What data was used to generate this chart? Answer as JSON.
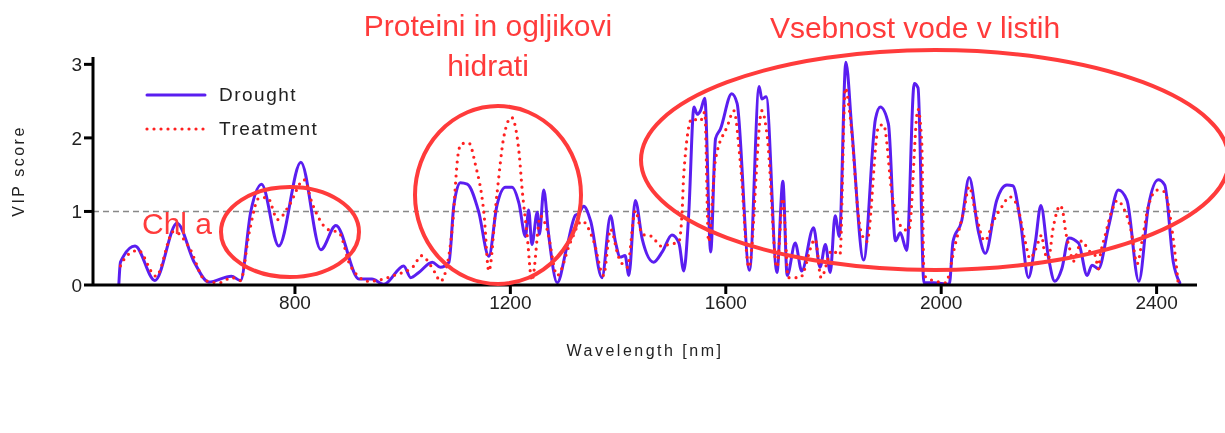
{
  "chart_data": {
    "type": "line",
    "xlabel": "Wavelength [nm]",
    "ylabel": "VIP score",
    "xlim": [
      425,
      2475
    ],
    "ylim": [
      0,
      3.1
    ],
    "xticks": [
      800,
      1200,
      1600,
      2000,
      2400
    ],
    "yticks": [
      0,
      1,
      2,
      3
    ],
    "legend": "top left",
    "annotations": [
      "Chl a",
      "Proteini in ogljikovi hidrati",
      "Vsebnost vode v listih"
    ],
    "ref_lines": [
      {
        "axis": "y",
        "value": 1,
        "color": "#888888",
        "line_style": "dashed"
      }
    ],
    "series": [
      {
        "name": "Drought",
        "color": "#5a1ef0",
        "line_style": "solid",
        "x": [
          473,
          476,
          503,
          540,
          581,
          613,
          640,
          682,
          699,
          718,
          738,
          770,
          811,
          848,
          876,
          919,
          943,
          965,
          1002,
          1015,
          1030,
          1055,
          1070,
          1086,
          1095,
          1107,
          1120,
          1141,
          1160,
          1175,
          1191,
          1203,
          1216,
          1228,
          1234,
          1240,
          1250,
          1254,
          1262,
          1271,
          1287,
          1305,
          1321,
          1327,
          1336,
          1349,
          1370,
          1386,
          1395,
          1404,
          1413,
          1420,
          1432,
          1445,
          1466,
          1482,
          1500,
          1513,
          1522,
          1531,
          1541,
          1547,
          1553,
          1561,
          1572,
          1581,
          1590,
          1611,
          1621,
          1644,
          1662,
          1667,
          1675,
          1695,
          1706,
          1714,
          1729,
          1741,
          1763,
          1775,
          1785,
          1794,
          1803,
          1811,
          1823,
          1834,
          1856,
          1878,
          1887,
          1902,
          1915,
          1924,
          1936,
          1950,
          1957,
          1968,
          1986,
          2015,
          2022,
          2038,
          2052,
          2069,
          2082,
          2103,
          2122,
          2133,
          2147,
          2162,
          2175,
          2185,
          2199,
          2211,
          2224,
          2237,
          2255,
          2271,
          2280,
          2292,
          2311,
          2329,
          2345,
          2367,
          2385,
          2403,
          2415,
          2431,
          2443
        ],
        "values": [
          0.01,
          0.31,
          0.53,
          0.06,
          0.84,
          0.31,
          0.04,
          0.12,
          0.06,
          1.0,
          1.37,
          0.53,
          1.67,
          0.48,
          0.81,
          0.08,
          0.08,
          0.01,
          0.26,
          0.1,
          0.17,
          0.31,
          0.24,
          0.31,
          1.08,
          1.39,
          1.37,
          1.0,
          0.39,
          1.08,
          1.33,
          1.33,
          1.11,
          0.66,
          1.02,
          0.55,
          0.99,
          0.69,
          1.29,
          0.69,
          0.03,
          0.52,
          0.95,
          0.97,
          1.07,
          0.87,
          0.1,
          0.94,
          0.59,
          0.38,
          0.4,
          0.13,
          1.15,
          0.62,
          0.31,
          0.45,
          0.68,
          0.57,
          0.19,
          0.94,
          2.42,
          2.32,
          2.37,
          2.54,
          0.45,
          1.99,
          2.12,
          2.6,
          2.47,
          0.2,
          2.7,
          2.53,
          2.56,
          0.17,
          1.41,
          0.13,
          0.57,
          0.19,
          0.78,
          0.24,
          0.55,
          0.17,
          0.94,
          0.66,
          3.03,
          2.12,
          0.34,
          2.26,
          2.42,
          2.19,
          0.6,
          0.71,
          0.47,
          2.74,
          2.68,
          0.03,
          0.03,
          0.01,
          0.59,
          0.87,
          1.46,
          0.73,
          0.43,
          1.15,
          1.36,
          1.35,
          0.87,
          0.1,
          0.59,
          1.08,
          0.38,
          0.05,
          0.22,
          0.64,
          0.57,
          0.13,
          0.27,
          0.22,
          0.8,
          1.29,
          1.15,
          0.05,
          1.08,
          1.43,
          1.36,
          0.31,
          0.03
        ]
      },
      {
        "name": "Treatment",
        "color": "#ff2020",
        "line_style": "dotted",
        "x": [
          476,
          488,
          509,
          542,
          575,
          603,
          634,
          659,
          683,
          699,
          715,
          733,
          749,
          768,
          789,
          817,
          832,
          860,
          882,
          903,
          937,
          984,
          1021,
          1034,
          1060,
          1070,
          1080,
          1092,
          1103,
          1109,
          1123,
          1135,
          1151,
          1160,
          1175,
          1188,
          1202,
          1216,
          1222,
          1231,
          1240,
          1256,
          1268,
          1287,
          1312,
          1333,
          1355,
          1373,
          1386,
          1401,
          1417,
          1432,
          1445,
          1463,
          1479,
          1494,
          1513,
          1519,
          1522,
          1537,
          1553,
          1561,
          1568,
          1581,
          1603,
          1615,
          1627,
          1643,
          1667,
          1677,
          1695,
          1706,
          1716,
          1738,
          1766,
          1777,
          1797,
          1812,
          1822,
          1830,
          1850,
          1862,
          1884,
          1893,
          1909,
          1930,
          1940,
          1957,
          1964,
          1968,
          1990,
          2008,
          2026,
          2042,
          2052,
          2063,
          2081,
          2097,
          2114,
          2127,
          2141,
          2156,
          2165,
          2175,
          2187,
          2190,
          2199,
          2208,
          2221,
          2227,
          2230,
          2239,
          2245,
          2261,
          2274,
          2286,
          2292,
          2295,
          2305,
          2317,
          2327,
          2339,
          2352,
          2364,
          2373,
          2385,
          2401,
          2414,
          2431,
          2440
        ],
        "values": [
          0.26,
          0.4,
          0.47,
          0.12,
          0.73,
          0.52,
          0.06,
          0.03,
          0.1,
          0.06,
          0.71,
          1.18,
          1.19,
          0.89,
          1.08,
          1.43,
          1.11,
          0.76,
          0.71,
          0.26,
          0.05,
          0.13,
          0.26,
          0.4,
          0.17,
          0.05,
          0.19,
          0.76,
          1.78,
          1.92,
          1.93,
          1.64,
          0.97,
          0.19,
          1.23,
          2.02,
          2.28,
          1.81,
          1.29,
          0.69,
          0.06,
          0.94,
          0.76,
          0.13,
          0.59,
          0.87,
          0.59,
          0.13,
          0.76,
          0.38,
          0.24,
          1.01,
          0.69,
          0.66,
          0.53,
          0.55,
          0.59,
          1.01,
          1.51,
          2.26,
          2.23,
          2.35,
          0.59,
          1.71,
          2.16,
          2.37,
          1.67,
          0.24,
          2.37,
          2.02,
          0.24,
          1.18,
          0.1,
          0.1,
          0.62,
          0.1,
          0.47,
          0.41,
          2.68,
          2.35,
          0.76,
          0.59,
          2.16,
          2.18,
          1.22,
          0.76,
          0.74,
          2.39,
          1.92,
          0.13,
          0.05,
          0.03,
          0.55,
          1.01,
          1.34,
          1.01,
          0.6,
          0.87,
          1.08,
          1.2,
          1.08,
          0.59,
          0.36,
          0.48,
          0.68,
          0.52,
          0.36,
          0.78,
          1.08,
          0.95,
          0.78,
          0.48,
          0.32,
          0.6,
          0.47,
          0.4,
          0.22,
          0.38,
          0.69,
          1.01,
          1.15,
          1.04,
          0.76,
          0.29,
          0.6,
          1.08,
          1.29,
          1.27,
          0.62,
          0.03
        ]
      }
    ]
  }
}
